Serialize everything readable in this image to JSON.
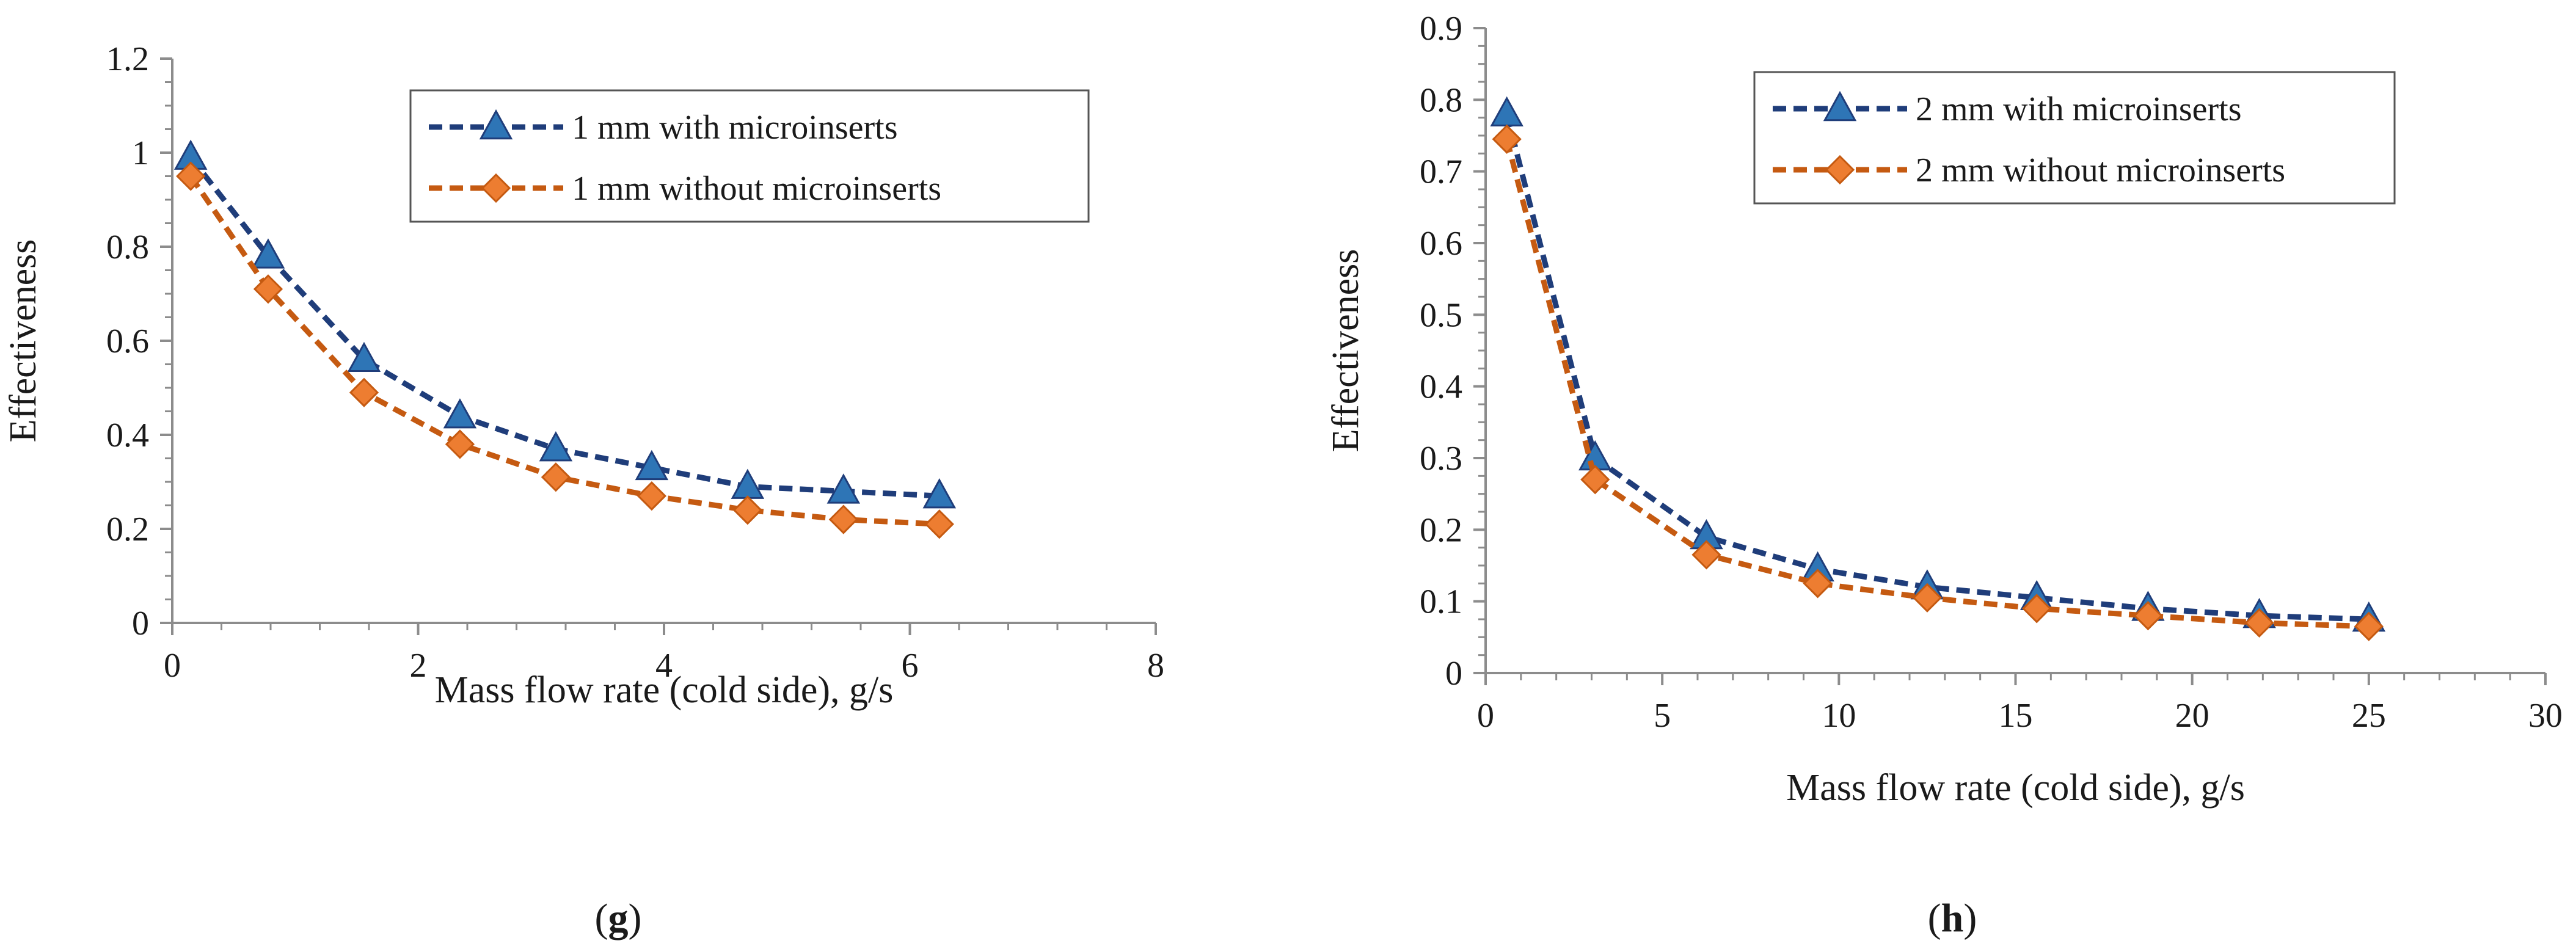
{
  "colors": {
    "series_with": "#1f3d7a",
    "series_with_marker": "#2e75b6",
    "series_without": "#c55a11",
    "series_without_marker": "#ed7d31",
    "axis": "#8c8c8c"
  },
  "chart_data": [
    {
      "type": "line",
      "panel": "g",
      "panel_label": "g",
      "title": "",
      "xlabel": "Mass flow rate (cold side), g/s",
      "ylabel": "Effectiveness",
      "xlim": [
        0,
        8
      ],
      "ylim": [
        0,
        1.2
      ],
      "xticks": [
        0,
        2,
        4,
        6,
        8
      ],
      "xtick_labels": [
        "0",
        "2",
        "4",
        "6",
        "8"
      ],
      "yticks": [
        0,
        0.2,
        0.4,
        0.6,
        0.8,
        1,
        1.2
      ],
      "ytick_labels": [
        "0",
        "0.2",
        "0.4",
        "0.6",
        "0.8",
        "1",
        "1.2"
      ],
      "legend_position": "top-right",
      "series": [
        {
          "name": "1 mm with microinserts",
          "marker": "triangle",
          "x": [
            0.15,
            0.78,
            1.56,
            2.34,
            3.12,
            3.9,
            4.68,
            5.46,
            6.24
          ],
          "values": [
            0.99,
            0.78,
            0.56,
            0.44,
            0.37,
            0.33,
            0.29,
            0.28,
            0.27
          ]
        },
        {
          "name": "1 mm without microinserts",
          "marker": "diamond",
          "x": [
            0.15,
            0.78,
            1.56,
            2.34,
            3.12,
            3.9,
            4.68,
            5.46,
            6.24
          ],
          "values": [
            0.95,
            0.71,
            0.49,
            0.38,
            0.31,
            0.27,
            0.24,
            0.22,
            0.21
          ]
        }
      ]
    },
    {
      "type": "line",
      "panel": "h",
      "panel_label": "h",
      "title": "",
      "xlabel": "Mass flow rate (cold side), g/s",
      "ylabel": "Effectiveness",
      "xlim": [
        0,
        30
      ],
      "ylim": [
        0,
        0.9
      ],
      "xticks": [
        0,
        5,
        10,
        15,
        20,
        25,
        30
      ],
      "xtick_labels": [
        "0",
        "5",
        "10",
        "15",
        "20",
        "25",
        "30"
      ],
      "yticks": [
        0,
        0.1,
        0.2,
        0.3,
        0.4,
        0.5,
        0.6,
        0.7,
        0.8,
        0.9
      ],
      "ytick_labels": [
        "0",
        "0.1",
        "0.2",
        "0.3",
        "0.4",
        "0.5",
        "0.6",
        "0.7",
        "0.8",
        "0.9"
      ],
      "legend_position": "top-right",
      "series": [
        {
          "name": "2 mm with microinserts",
          "marker": "triangle",
          "x": [
            0.6,
            3.1,
            6.25,
            9.4,
            12.5,
            15.6,
            18.75,
            21.9,
            25.0
          ],
          "values": [
            0.78,
            0.3,
            0.19,
            0.145,
            0.12,
            0.105,
            0.09,
            0.08,
            0.075
          ]
        },
        {
          "name": "2 mm without microinserts",
          "marker": "diamond",
          "x": [
            0.6,
            3.1,
            6.25,
            9.4,
            12.5,
            15.6,
            18.75,
            21.9,
            25.0
          ],
          "values": [
            0.745,
            0.27,
            0.165,
            0.125,
            0.105,
            0.09,
            0.08,
            0.07,
            0.065
          ]
        }
      ]
    }
  ]
}
